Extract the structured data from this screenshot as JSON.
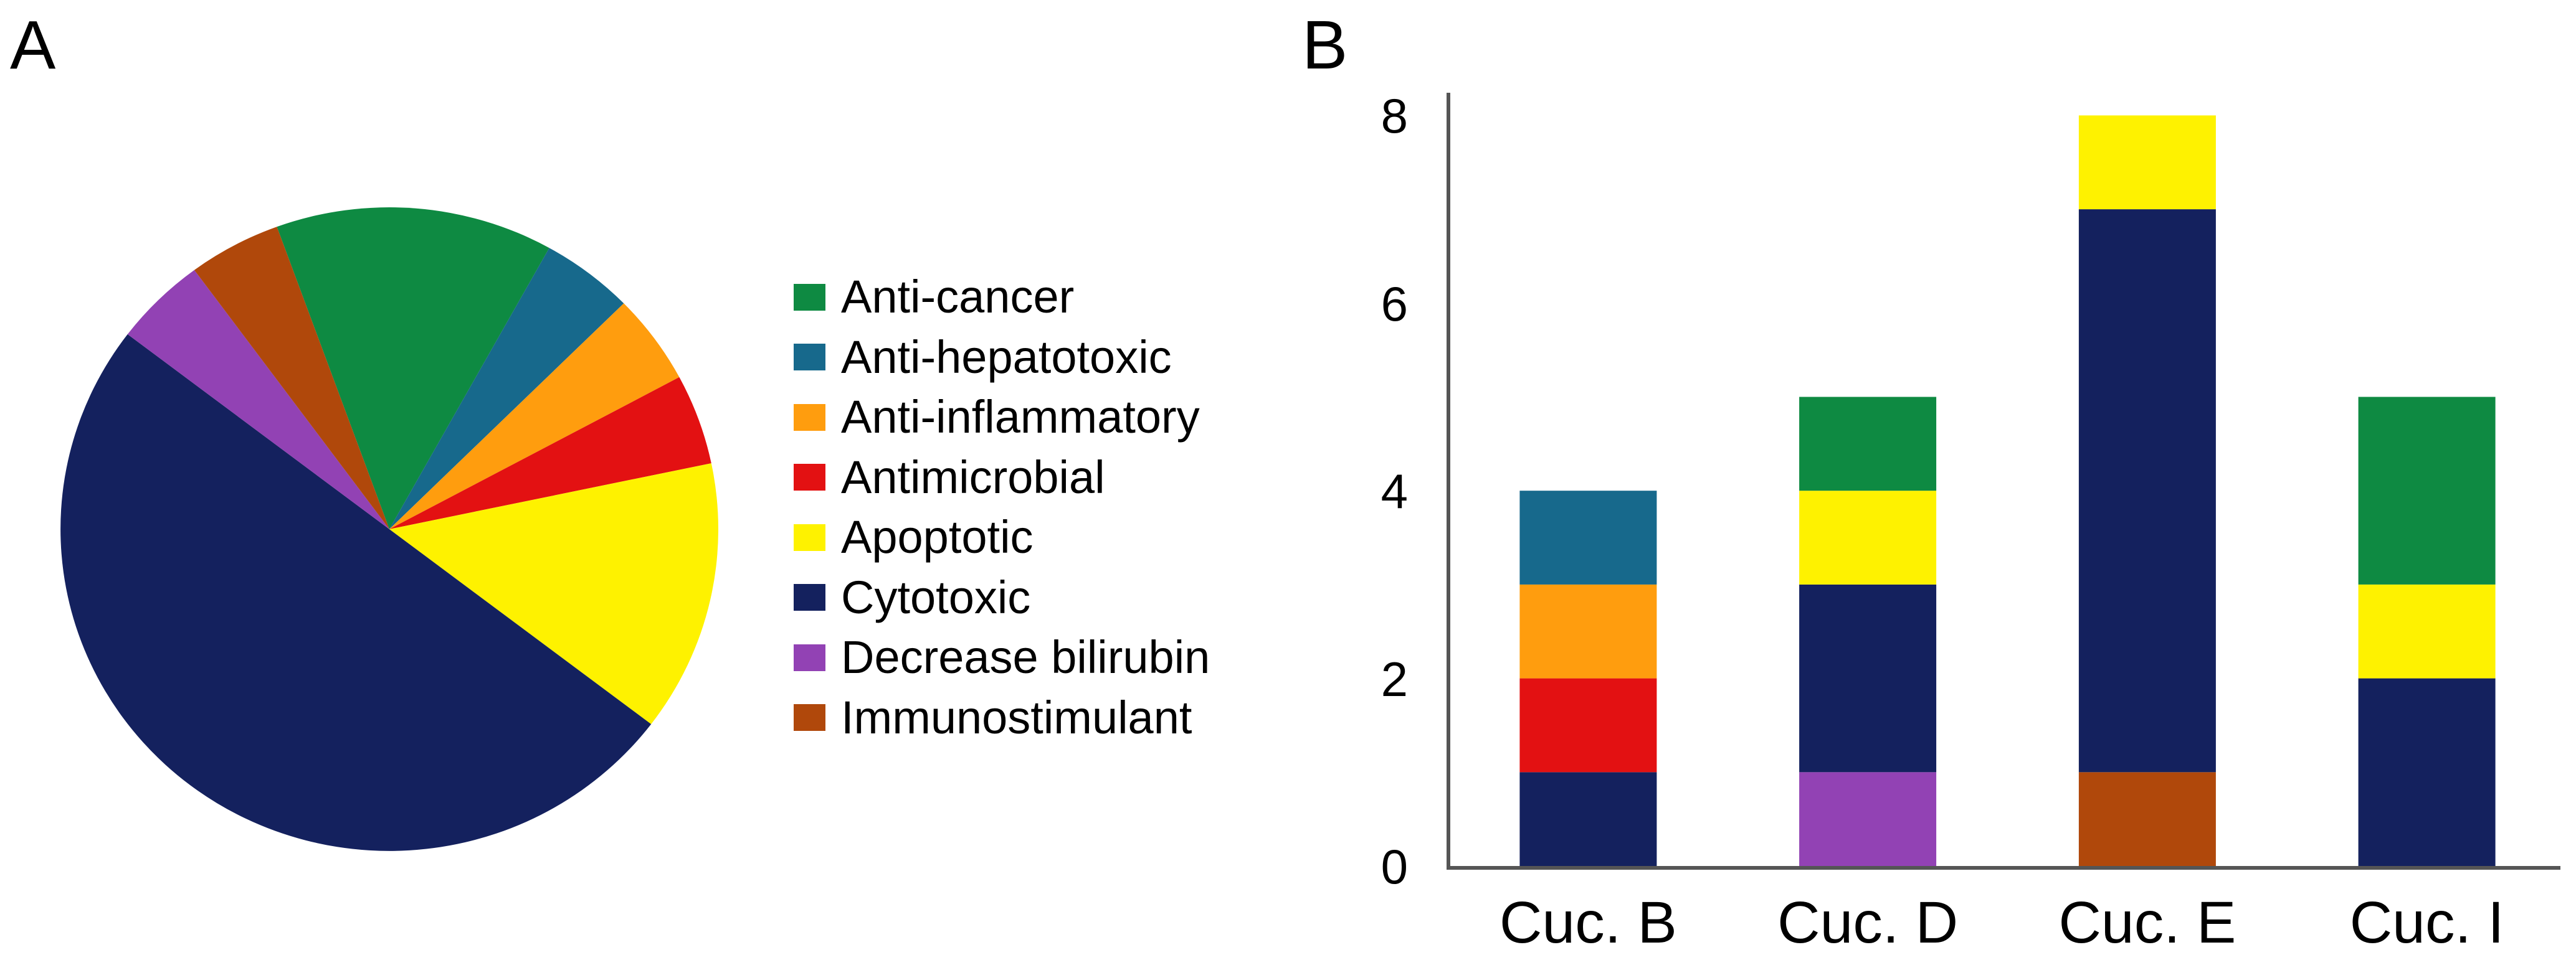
{
  "panel_a": {
    "label": "A",
    "legend": [
      {
        "label": "Anti-cancer",
        "color": "#0E8A42"
      },
      {
        "label": "Anti-hepatotoxic",
        "color": "#17698C"
      },
      {
        "label": "Anti-inflammatory",
        "color": "#FF9D0E"
      },
      {
        "label": "Antimicrobial",
        "color": "#E31112"
      },
      {
        "label": "Apoptotic",
        "color": "#FEF200"
      },
      {
        "label": "Cytotoxic",
        "color": "#14215E"
      },
      {
        "label": "Decrease bilirubin",
        "color": "#9242B4"
      },
      {
        "label": "Immunostimulant",
        "color": "#B0480B"
      }
    ],
    "chart_data": {
      "type": "pie",
      "title": "",
      "labels": [
        "Anti-cancer",
        "Anti-hepatotoxic",
        "Anti-inflammatory",
        "Antimicrobial",
        "Apoptotic",
        "Cytotoxic",
        "Decrease bilirubin",
        "Immunostimulant"
      ],
      "values": [
        3,
        1,
        1,
        1,
        3,
        11,
        1,
        1
      ],
      "total": 22,
      "percentages": [
        13.6,
        4.5,
        4.5,
        4.5,
        13.6,
        50.0,
        4.5,
        4.5
      ],
      "colors": [
        "#0E8A42",
        "#17698C",
        "#FF9D0E",
        "#E31112",
        "#FEF200",
        "#14215E",
        "#9242B4",
        "#B0480B"
      ],
      "start_angle_deg": 340,
      "direction": "clockwise",
      "legend_position": "right"
    }
  },
  "panel_b": {
    "label": "B",
    "chart_data": {
      "type": "bar",
      "stacked": true,
      "title": "",
      "xlabel": "",
      "ylabel": "",
      "categories": [
        "Cuc. B",
        "Cuc. D",
        "Cuc. E",
        "Cuc. I"
      ],
      "series": [
        {
          "name": "Decrease bilirubin",
          "color": "#9242B4",
          "values": [
            0,
            1,
            0,
            0
          ]
        },
        {
          "name": "Immunostimulant",
          "color": "#B0480B",
          "values": [
            0,
            0,
            1,
            0
          ]
        },
        {
          "name": "Cytotoxic",
          "color": "#14215E",
          "values": [
            1,
            2,
            6,
            2
          ]
        },
        {
          "name": "Antimicrobial",
          "color": "#E31112",
          "values": [
            1,
            0,
            0,
            0
          ]
        },
        {
          "name": "Anti-inflammatory",
          "color": "#FF9D0E",
          "values": [
            1,
            0,
            0,
            0
          ]
        },
        {
          "name": "Anti-hepatotoxic",
          "color": "#17698C",
          "values": [
            1,
            0,
            0,
            0
          ]
        },
        {
          "name": "Apoptotic",
          "color": "#FEF200",
          "values": [
            0,
            1,
            1,
            1
          ]
        },
        {
          "name": "Anti-cancer",
          "color": "#0E8A42",
          "values": [
            0,
            1,
            0,
            2
          ]
        }
      ],
      "bar_totals": [
        4,
        5,
        8,
        5
      ],
      "y_ticks": [
        0,
        2,
        4,
        6,
        8
      ],
      "ylim": [
        0,
        8
      ],
      "grid": false,
      "legend": "none",
      "axis_color": "#555555",
      "text_color": "#000000"
    }
  }
}
